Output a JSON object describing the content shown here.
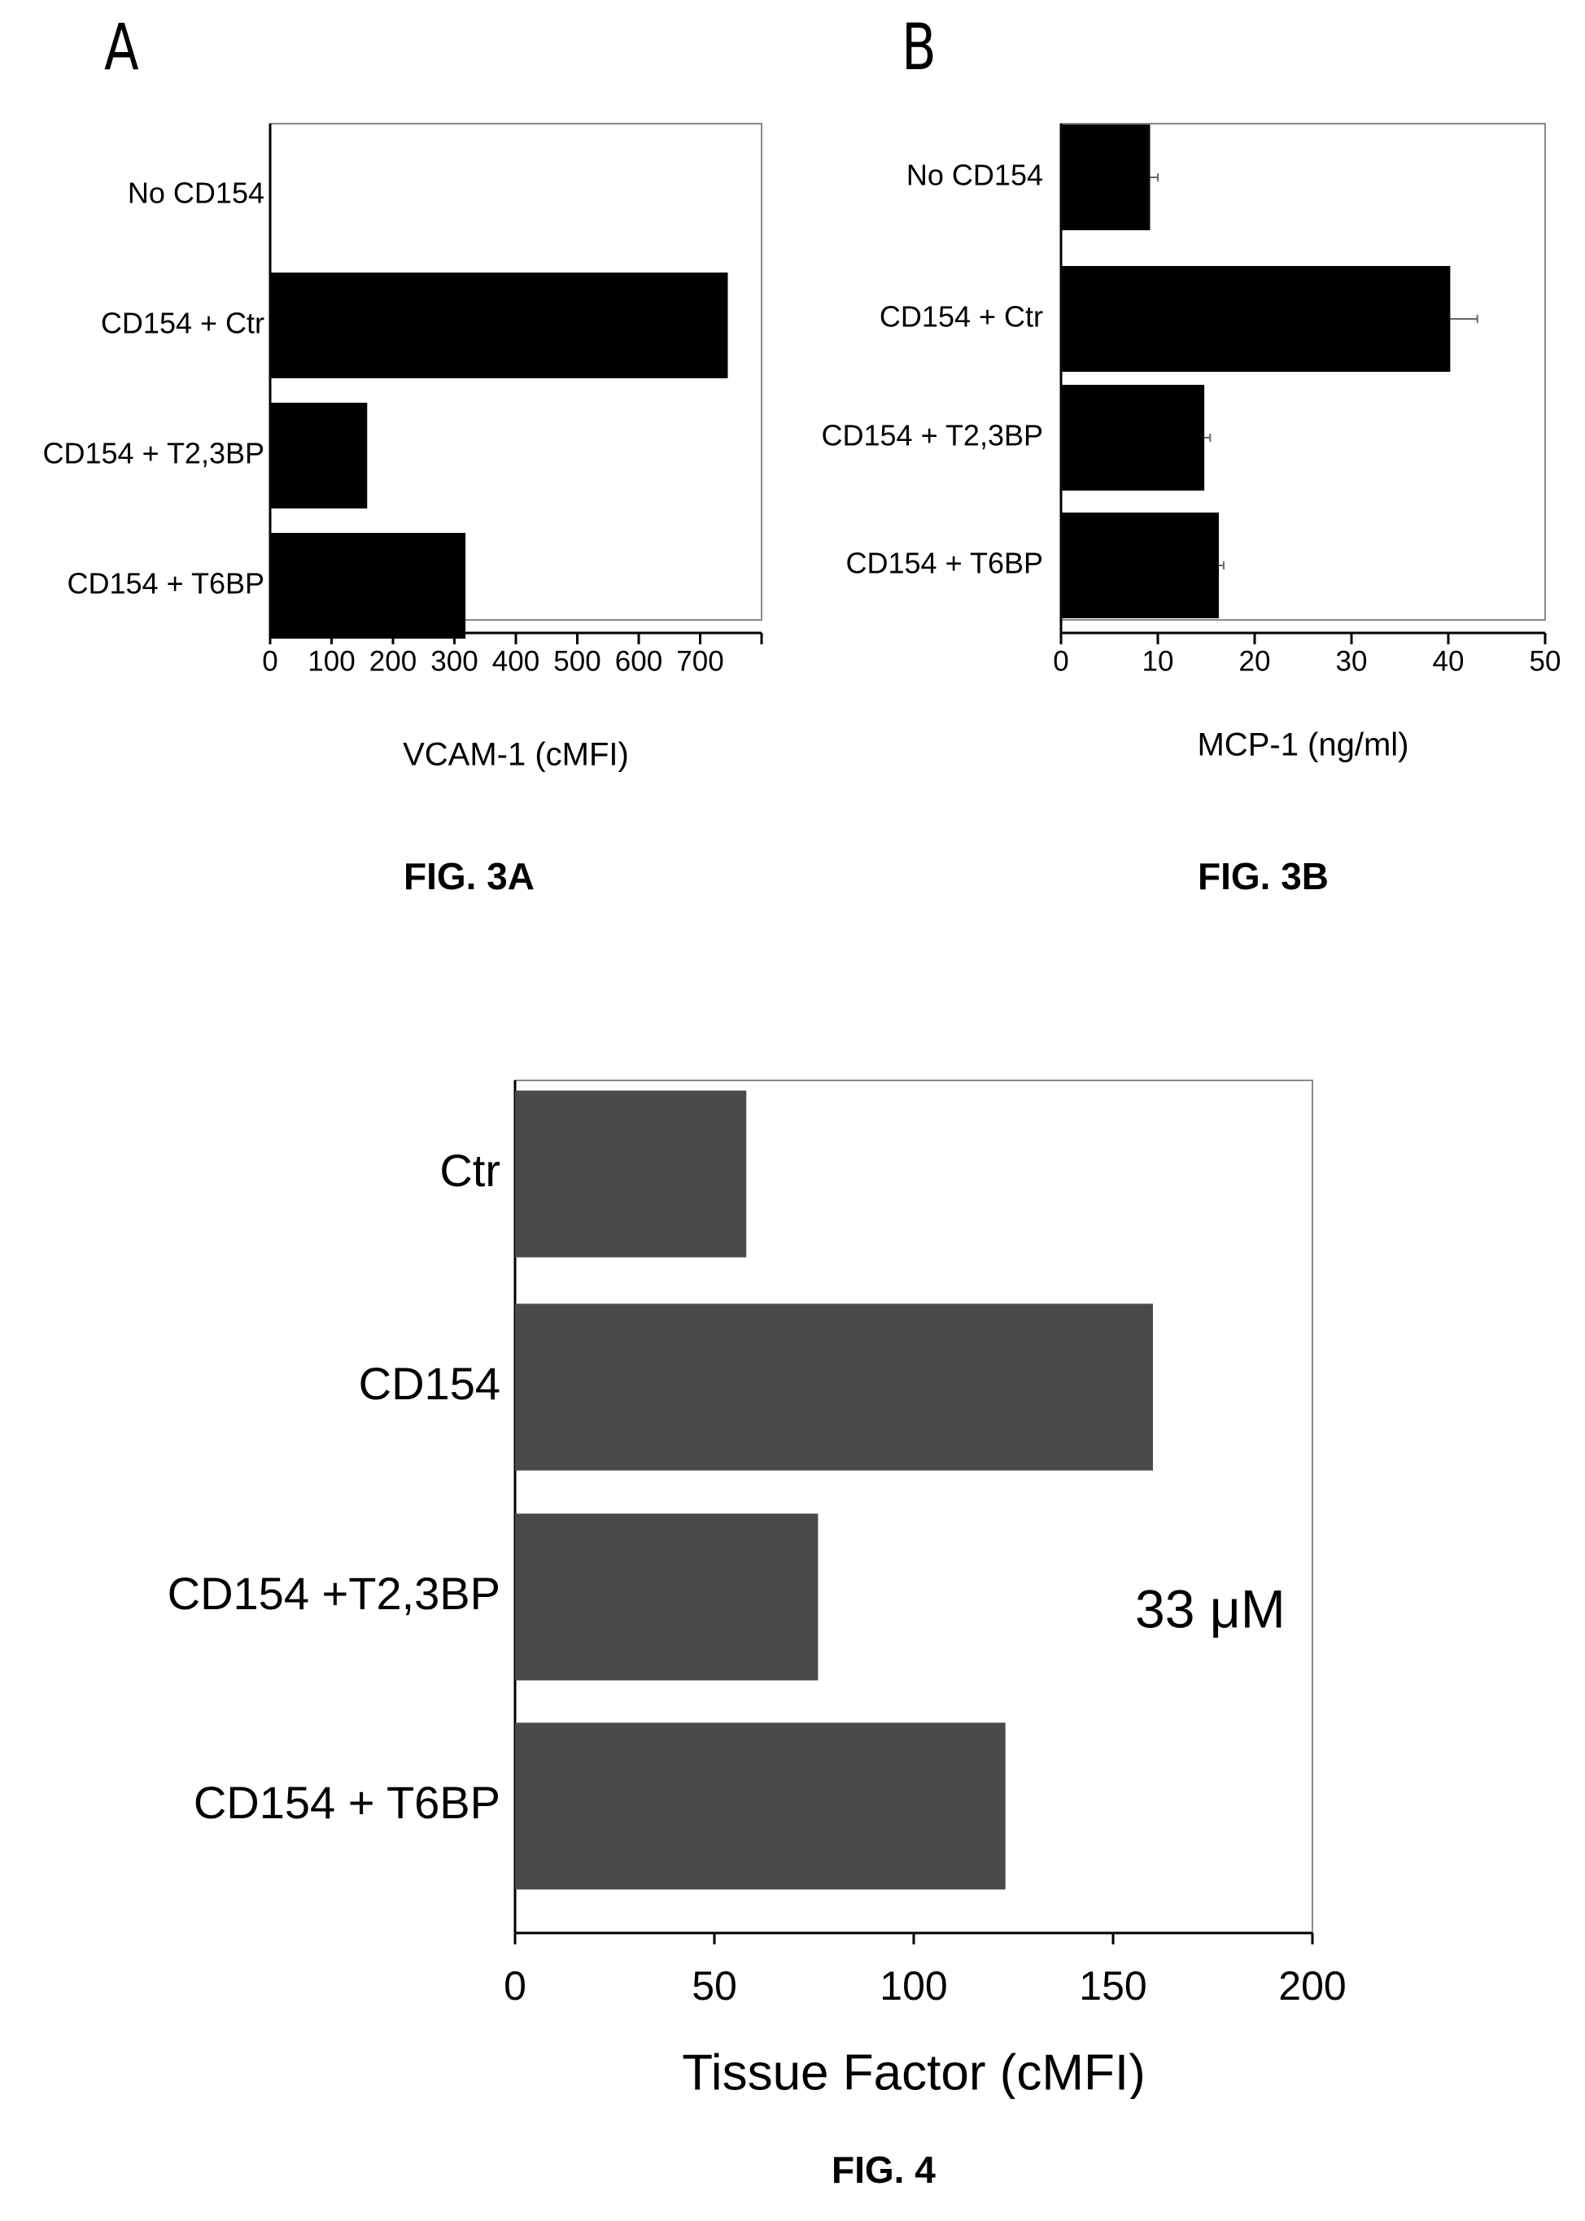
{
  "panel_labels": [
    "A",
    "B"
  ],
  "captions": {
    "fig3a": "FIG. 3A",
    "fig3b": "FIG. 3B",
    "fig4": "FIG. 4"
  },
  "colors": {
    "bar_black": "#000000",
    "bar_gray": "#4a4a4a",
    "axis": "#000000",
    "frame": "#888888"
  },
  "chart_data": [
    {
      "id": "fig3a",
      "type": "bar",
      "orientation": "horizontal",
      "title": "",
      "xlabel": "VCAM-1 (cMFI)",
      "ylabel": "",
      "categories": [
        "No CD154",
        "CD154 + Ctr",
        "CD154 + T2,3BP",
        "CD154 + T6BP"
      ],
      "values": [
        0,
        745,
        158,
        318
      ],
      "xlim": [
        0,
        800
      ],
      "xticks": [
        0,
        100,
        200,
        300,
        400,
        500,
        600,
        700
      ],
      "grid": false,
      "legend": "none"
    },
    {
      "id": "fig3b",
      "type": "bar",
      "orientation": "horizontal",
      "title": "",
      "xlabel": "MCP-1 (ng/ml)",
      "ylabel": "",
      "categories": [
        "No CD154",
        "CD154 + Ctr",
        "CD154 + T2,3BP",
        "CD154 + T6BP"
      ],
      "values": [
        9.2,
        40.2,
        14.8,
        16.3
      ],
      "errors": [
        0.8,
        2.8,
        0.6,
        0.5
      ],
      "xlim": [
        0,
        50
      ],
      "xticks": [
        0,
        10,
        20,
        30,
        40,
        50
      ],
      "grid": false,
      "legend": "none"
    },
    {
      "id": "fig4",
      "type": "bar",
      "orientation": "horizontal",
      "title": "",
      "xlabel": "Tissue Factor (cMFI)",
      "ylabel": "",
      "categories": [
        "Ctr",
        "CD154",
        "CD154 +T2,3BP",
        "CD154 + T6BP"
      ],
      "values": [
        58,
        160,
        76,
        123
      ],
      "xlim": [
        0,
        200
      ],
      "xticks": [
        0,
        50,
        100,
        150,
        200
      ],
      "annotation": "33 μM",
      "grid": false,
      "legend": "none"
    }
  ]
}
